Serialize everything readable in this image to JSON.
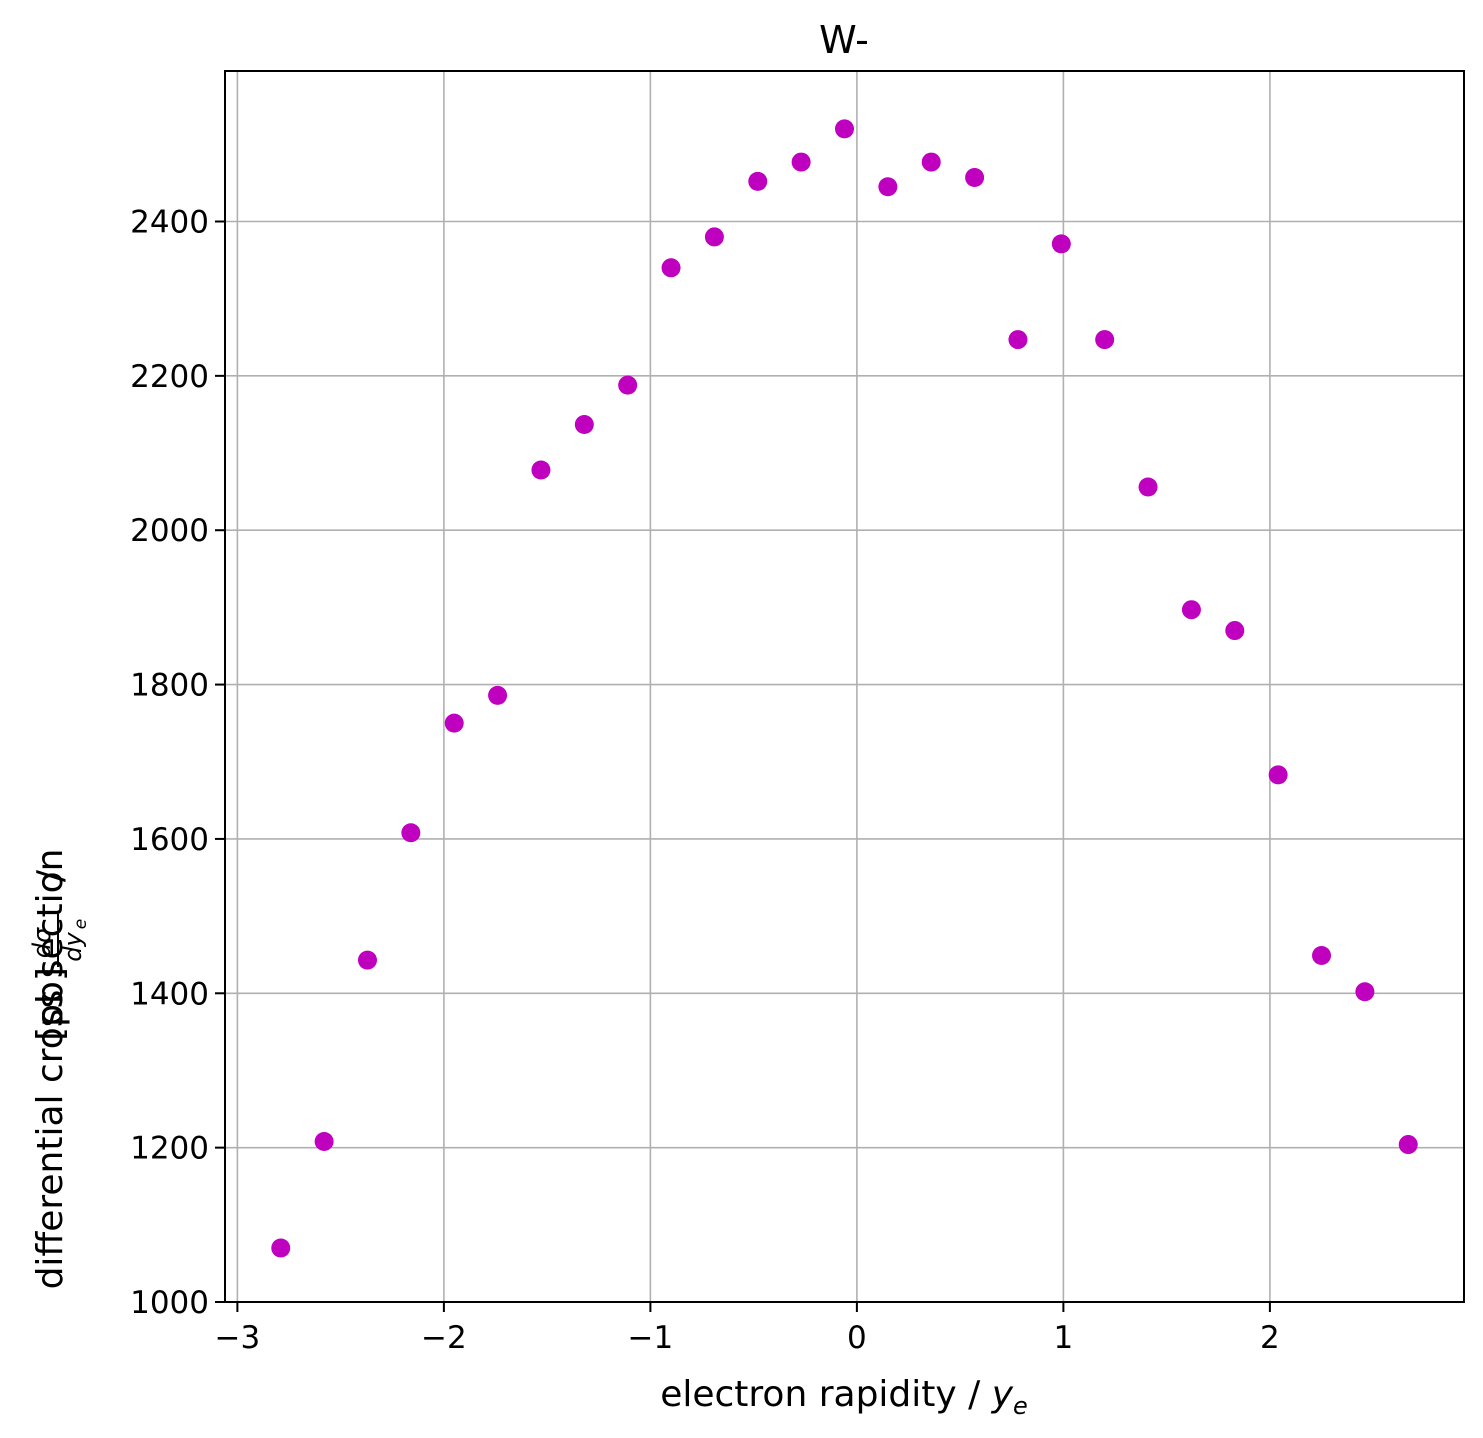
{
  "chart_data": {
    "type": "scatter",
    "title": "W-",
    "xlabel": {
      "text": "electron rapidity / ",
      "var": "y",
      "sub": "e"
    },
    "ylabel": {
      "text": "differential cross section",
      "slash": "/",
      "frac_num": "dσ",
      "frac_den": "dy",
      "frac_sub": "e",
      "unit": "[pb]"
    },
    "xlim": [
      -3.06,
      2.94
    ],
    "ylim": [
      1000,
      2595
    ],
    "xticks": [
      -3,
      -2,
      -1,
      0,
      1,
      2
    ],
    "xtick_labels": [
      "−3",
      "−2",
      "−1",
      "0",
      "1",
      "2"
    ],
    "yticks": [
      1000,
      1200,
      1400,
      1600,
      1800,
      2000,
      2200,
      2400
    ],
    "ytick_labels": [
      "1000",
      "1200",
      "1400",
      "1600",
      "1800",
      "2000",
      "2200",
      "2400"
    ],
    "grid": true,
    "marker_color": "#bf00bf",
    "series": [
      {
        "x": [
          -2.79,
          -2.58,
          -2.37,
          -2.16,
          -1.95,
          -1.74,
          -1.53,
          -1.32,
          -1.11,
          -0.9,
          -0.69,
          -0.48,
          -0.27,
          -0.06,
          0.15,
          0.36,
          0.57,
          0.78,
          0.99,
          1.2,
          1.41,
          1.62,
          1.83,
          2.04,
          2.25,
          2.46,
          2.67
        ],
        "y": [
          1070,
          1208,
          1443,
          1608,
          1750,
          1786,
          2078,
          2137,
          2188,
          2340,
          2380,
          2452,
          2477,
          2520,
          2445,
          2477,
          2457,
          2247,
          2371,
          2247,
          2056,
          1897,
          1870,
          1683,
          1449,
          1402,
          1204
        ]
      }
    ]
  }
}
